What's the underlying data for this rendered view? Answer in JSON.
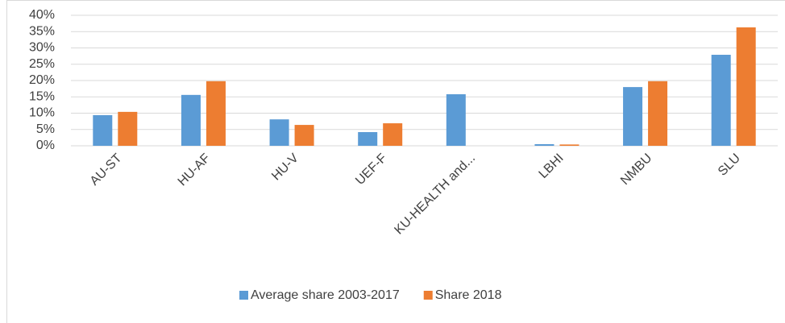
{
  "chart_data": {
    "type": "bar",
    "categories": [
      "AU-ST",
      "HU-AF",
      "HU-V",
      "UEF-F",
      "KU-HEALTH and...",
      "LBHI",
      "NMBU",
      "SLU"
    ],
    "series": [
      {
        "name": "Average share 2003-2017",
        "color": "#5b9bd5",
        "values": [
          9.4,
          15.6,
          8.1,
          4.2,
          15.8,
          0.5,
          18.0,
          27.9
        ]
      },
      {
        "name": "Share 2018",
        "color": "#ed7d31",
        "values": [
          10.4,
          19.8,
          6.4,
          6.9,
          null,
          0.4,
          19.8,
          36.3
        ]
      }
    ],
    "ylim": [
      0,
      40
    ],
    "yticks": [
      {
        "value": 0,
        "label": "0%"
      },
      {
        "value": 5,
        "label": "5%"
      },
      {
        "value": 10,
        "label": "10%"
      },
      {
        "value": 15,
        "label": "15%"
      },
      {
        "value": 20,
        "label": "20%"
      },
      {
        "value": 25,
        "label": "25%"
      },
      {
        "value": 30,
        "label": "30%"
      },
      {
        "value": 35,
        "label": "35%"
      },
      {
        "value": 40,
        "label": "40%"
      }
    ],
    "grid": true,
    "legend": "bottom"
  }
}
